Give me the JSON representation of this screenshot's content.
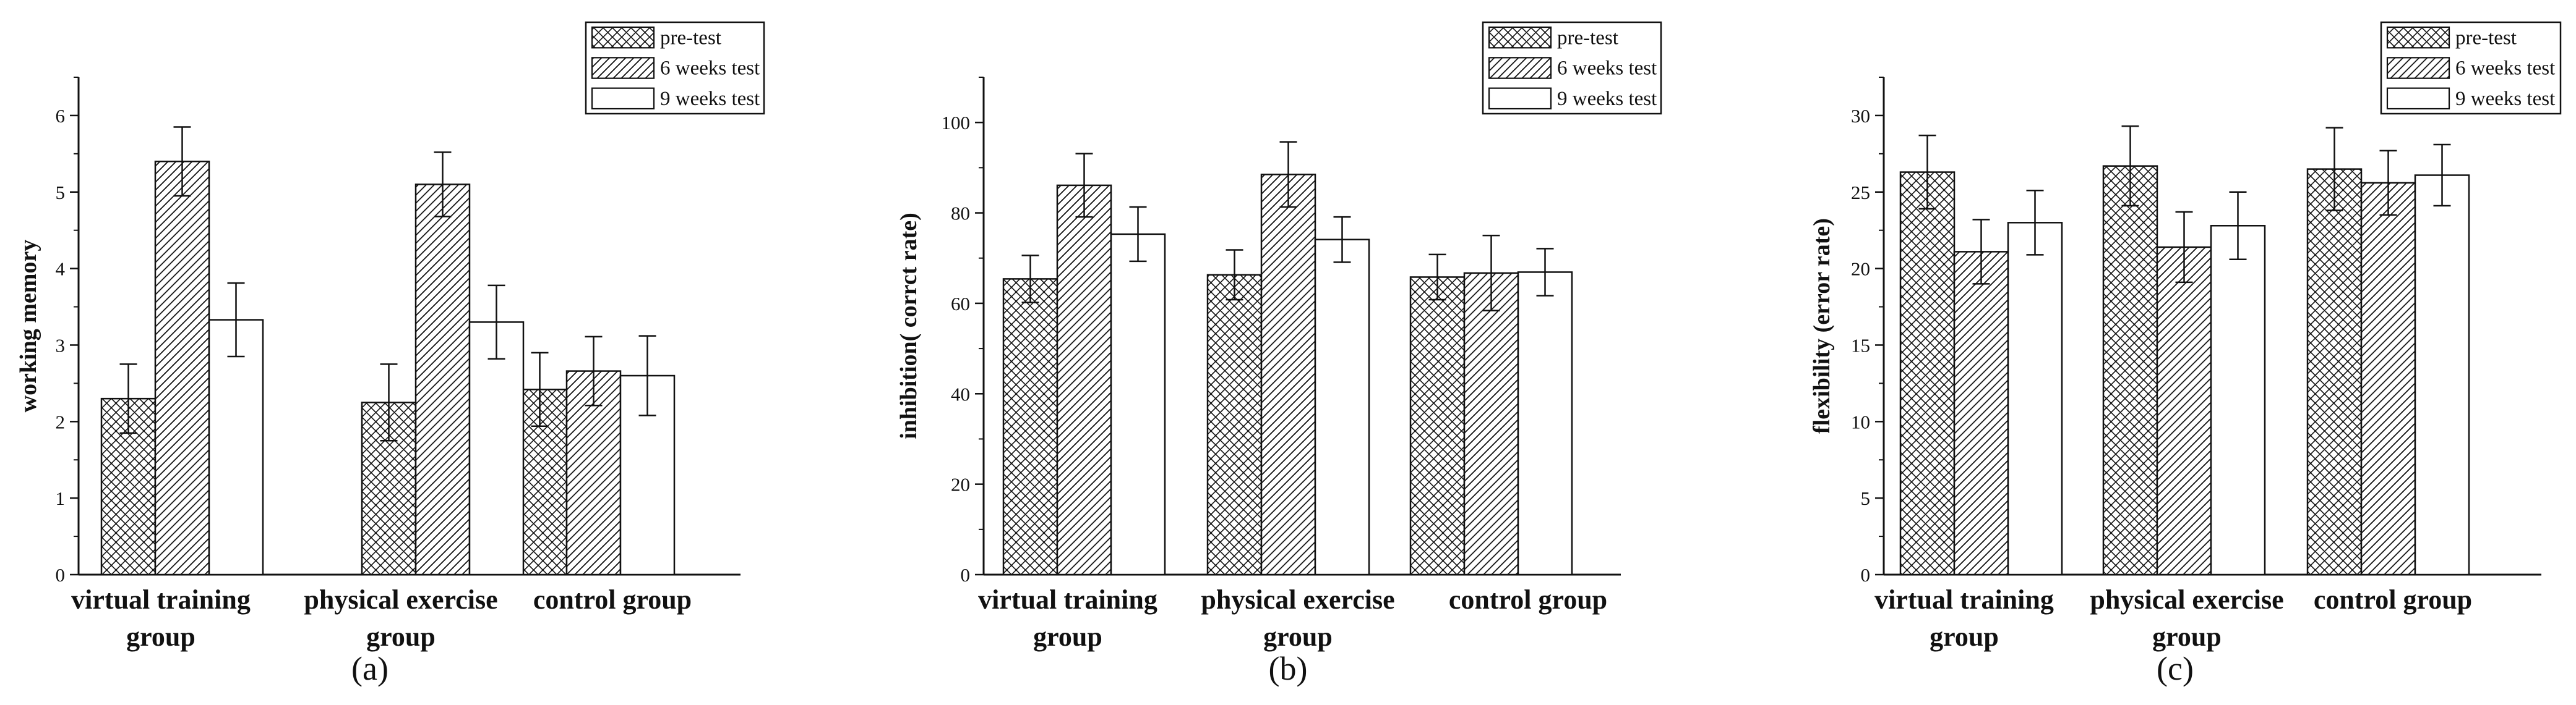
{
  "chart_data": [
    {
      "type": "bar",
      "panel_label": "(a)",
      "ylabel": "working memory",
      "xlabel": "",
      "ylim": [
        0,
        6.5
      ],
      "yticks": [
        0,
        1,
        2,
        3,
        4,
        5,
        6
      ],
      "categories": [
        [
          "virtual training",
          "group"
        ],
        [
          "physical exercise",
          "group"
        ],
        [
          "control group"
        ]
      ],
      "legend": {
        "position": "top-right",
        "entries": [
          "pre-test",
          "6 weeks test",
          "9 weeks test"
        ]
      },
      "series": [
        {
          "name": "pre-test",
          "pattern": "crosshatch",
          "values": [
            2.3,
            2.25,
            2.42
          ],
          "errors": [
            0.45,
            0.5,
            0.48
          ]
        },
        {
          "name": "6 weeks test",
          "pattern": "diagonal",
          "values": [
            5.4,
            5.1,
            2.66
          ],
          "errors": [
            0.45,
            0.42,
            0.45
          ]
        },
        {
          "name": "9 weeks test",
          "pattern": "plain",
          "values": [
            3.33,
            3.3,
            2.6
          ],
          "errors": [
            0.48,
            0.48,
            0.52
          ]
        }
      ]
    },
    {
      "type": "bar",
      "panel_label": "(b)",
      "ylabel": "inhibition(  corrct rate)",
      "xlabel": "",
      "ylim": [
        0,
        110
      ],
      "yticks": [
        0,
        20,
        40,
        60,
        80,
        100
      ],
      "categories": [
        [
          "virtual training",
          "group"
        ],
        [
          "physical exercise",
          "group"
        ],
        [
          "control group"
        ]
      ],
      "legend": {
        "position": "top-right",
        "entries": [
          "pre-test",
          "6 weeks test",
          "9 weeks test"
        ]
      },
      "series": [
        {
          "name": "pre-test",
          "pattern": "crosshatch",
          "values": [
            65.4,
            66.3,
            65.8
          ],
          "errors": [
            5.2,
            5.5,
            5.0
          ]
        },
        {
          "name": "6 weeks test",
          "pattern": "diagonal",
          "values": [
            86.1,
            88.5,
            66.7
          ],
          "errors": [
            7.0,
            7.2,
            8.3
          ]
        },
        {
          "name": "9 weeks test",
          "pattern": "plain",
          "values": [
            75.3,
            74.1,
            66.9
          ],
          "errors": [
            6.0,
            5.0,
            5.2
          ]
        }
      ]
    },
    {
      "type": "bar",
      "panel_label": "(c)",
      "ylabel": "flexibility (error rate)",
      "xlabel": "",
      "ylim": [
        0,
        32.5
      ],
      "yticks": [
        0,
        5,
        10,
        15,
        20,
        25,
        30
      ],
      "categories": [
        [
          "virtual training",
          "group"
        ],
        [
          "physical exercise",
          "group"
        ],
        [
          "control group"
        ]
      ],
      "legend": {
        "position": "top-right",
        "entries": [
          "pre-test",
          "6 weeks test",
          "9 weeks test"
        ]
      },
      "series": [
        {
          "name": "pre-test",
          "pattern": "crosshatch",
          "values": [
            26.3,
            26.7,
            26.5
          ],
          "errors": [
            2.4,
            2.6,
            2.7
          ]
        },
        {
          "name": "6 weeks test",
          "pattern": "diagonal",
          "values": [
            21.1,
            21.4,
            25.6
          ],
          "errors": [
            2.1,
            2.3,
            2.1
          ]
        },
        {
          "name": "9 weeks test",
          "pattern": "plain",
          "values": [
            23.0,
            22.8,
            26.1
          ],
          "errors": [
            2.1,
            2.2,
            2.0
          ]
        }
      ]
    }
  ]
}
